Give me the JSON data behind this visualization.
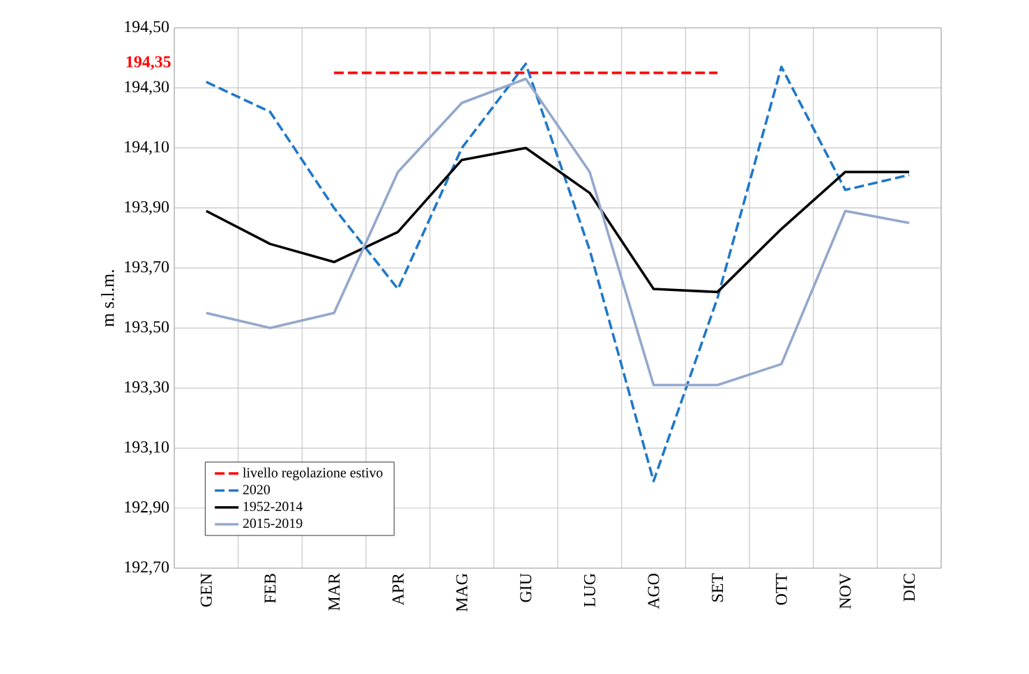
{
  "chart_data": {
    "type": "line",
    "ylabel": "m s.l.m.",
    "categories": [
      "GEN",
      "FEB",
      "MAR",
      "APR",
      "MAG",
      "GIU",
      "LUG",
      "AGO",
      "SET",
      "OTT",
      "NOV",
      "DIC"
    ],
    "series": [
      {
        "name": "livello regolazione estivo",
        "color": "#ff0000",
        "line_style": "dashed",
        "values": [
          null,
          null,
          194.35,
          194.35,
          194.35,
          194.35,
          194.35,
          194.35,
          194.35,
          null,
          null,
          null
        ]
      },
      {
        "name": "2020",
        "color": "#1f78c8",
        "line_style": "dashed",
        "values": [
          194.32,
          194.22,
          193.9,
          193.63,
          194.1,
          194.38,
          193.76,
          192.99,
          193.6,
          194.37,
          193.96,
          194.01
        ]
      },
      {
        "name": "1952-2014",
        "color": "#000000",
        "line_style": "solid",
        "values": [
          193.89,
          193.78,
          193.72,
          193.82,
          194.06,
          194.1,
          193.95,
          193.63,
          193.62,
          193.83,
          194.02,
          194.02
        ]
      },
      {
        "name": "2015-2019",
        "color": "#94a8cc",
        "line_style": "solid",
        "values": [
          193.55,
          193.5,
          193.55,
          194.02,
          194.25,
          194.33,
          194.02,
          193.31,
          193.31,
          193.38,
          193.89,
          193.85
        ]
      }
    ],
    "ylim": [
      192.7,
      194.5
    ],
    "yticks": [
      {
        "value": 192.7,
        "label": "192,70"
      },
      {
        "value": 192.9,
        "label": "192,90"
      },
      {
        "value": 193.1,
        "label": "193,10"
      },
      {
        "value": 193.3,
        "label": "193,30"
      },
      {
        "value": 193.5,
        "label": "193,50"
      },
      {
        "value": 193.7,
        "label": "193,70"
      },
      {
        "value": 193.9,
        "label": "193,90"
      },
      {
        "value": 194.1,
        "label": "194,10"
      },
      {
        "value": 194.3,
        "label": "194,30"
      },
      {
        "value": 194.5,
        "label": "194,50"
      }
    ],
    "annotations": [
      "194,35"
    ],
    "grid": true,
    "legend": "bottom left"
  }
}
